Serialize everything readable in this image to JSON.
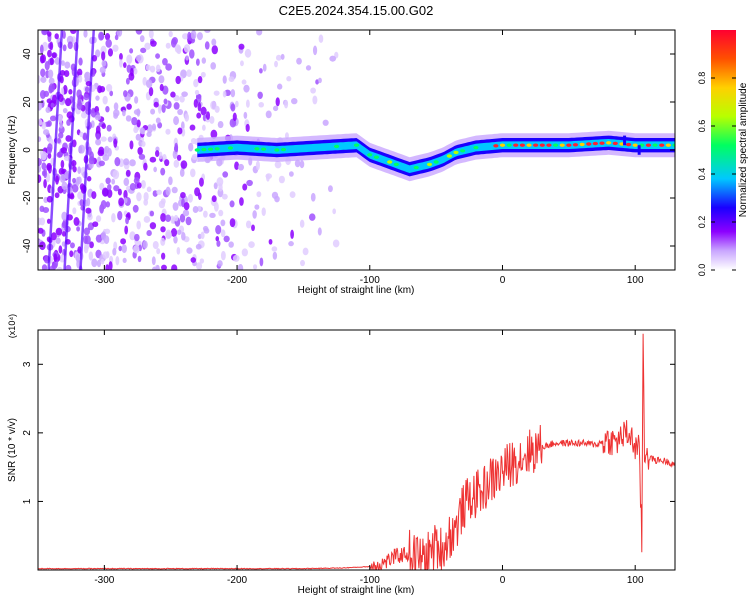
{
  "title": "C2E5.2024.354.15.00.G02",
  "chart_data": [
    {
      "type": "heatmap",
      "xlabel": "Height of straight line (km)",
      "ylabel": "Frequency (Hz)",
      "xlim": [
        -350,
        130
      ],
      "ylim": [
        -50,
        50
      ],
      "xticks": [
        -300,
        -200,
        -100,
        0,
        100
      ],
      "yticks": [
        -40,
        -20,
        0,
        20,
        40
      ],
      "colorbar": {
        "label": "Normalized spectral amplitude",
        "range": [
          0,
          1
        ],
        "ticks": [
          "0.0",
          "0.2",
          "0.4",
          "0.6",
          "0.8"
        ],
        "colors": [
          "#ffffff",
          "#c9a6ff",
          "#8c00ff",
          "#1a00ff",
          "#00c8ff",
          "#00ff60",
          "#b8ff00",
          "#ffd000",
          "#ff5000",
          "#ff0030"
        ]
      },
      "ridge": {
        "x": [
          -230,
          -200,
          -170,
          -140,
          -110,
          -100,
          -85,
          -70,
          -55,
          -45,
          -35,
          -20,
          0,
          20,
          50,
          80,
          100,
          130
        ],
        "y": [
          0,
          1,
          0,
          1,
          2,
          -2,
          -5,
          -8,
          -6,
          -4,
          -1,
          1,
          2,
          2,
          2,
          3,
          2,
          2
        ]
      }
    },
    {
      "type": "line",
      "xlabel": "Height of straight line (km)",
      "ylabel": "SNR (10 * v/v)",
      "y_multiplier": "(x10⁴)",
      "xlim": [
        -350,
        130
      ],
      "ylim": [
        0,
        3.5
      ],
      "xticks": [
        -300,
        -200,
        -100,
        0,
        100
      ],
      "yticks": [
        1,
        2,
        3
      ],
      "color": "#ee3333",
      "x": [
        -350,
        -300,
        -250,
        -200,
        -150,
        -120,
        -100,
        -90,
        -80,
        -70,
        -60,
        -55,
        -50,
        -45,
        -40,
        -35,
        -30,
        -25,
        -20,
        -15,
        -10,
        -5,
        0,
        10,
        20,
        30,
        40,
        50,
        60,
        70,
        80,
        85,
        90,
        95,
        100,
        103,
        105,
        106,
        107,
        108,
        110,
        115,
        120,
        130
      ],
      "y": [
        0.02,
        0.02,
        0.02,
        0.02,
        0.02,
        0.03,
        0.05,
        0.1,
        0.2,
        0.25,
        0.15,
        0.25,
        0.35,
        0.3,
        0.5,
        0.6,
        0.9,
        1.05,
        1.1,
        1.15,
        1.3,
        1.35,
        1.45,
        1.6,
        1.72,
        1.8,
        1.85,
        1.85,
        1.85,
        1.83,
        1.9,
        1.85,
        1.95,
        2.0,
        1.8,
        1.75,
        0.4,
        3.5,
        1.6,
        1.8,
        1.65,
        1.6,
        1.6,
        1.55
      ]
    }
  ]
}
